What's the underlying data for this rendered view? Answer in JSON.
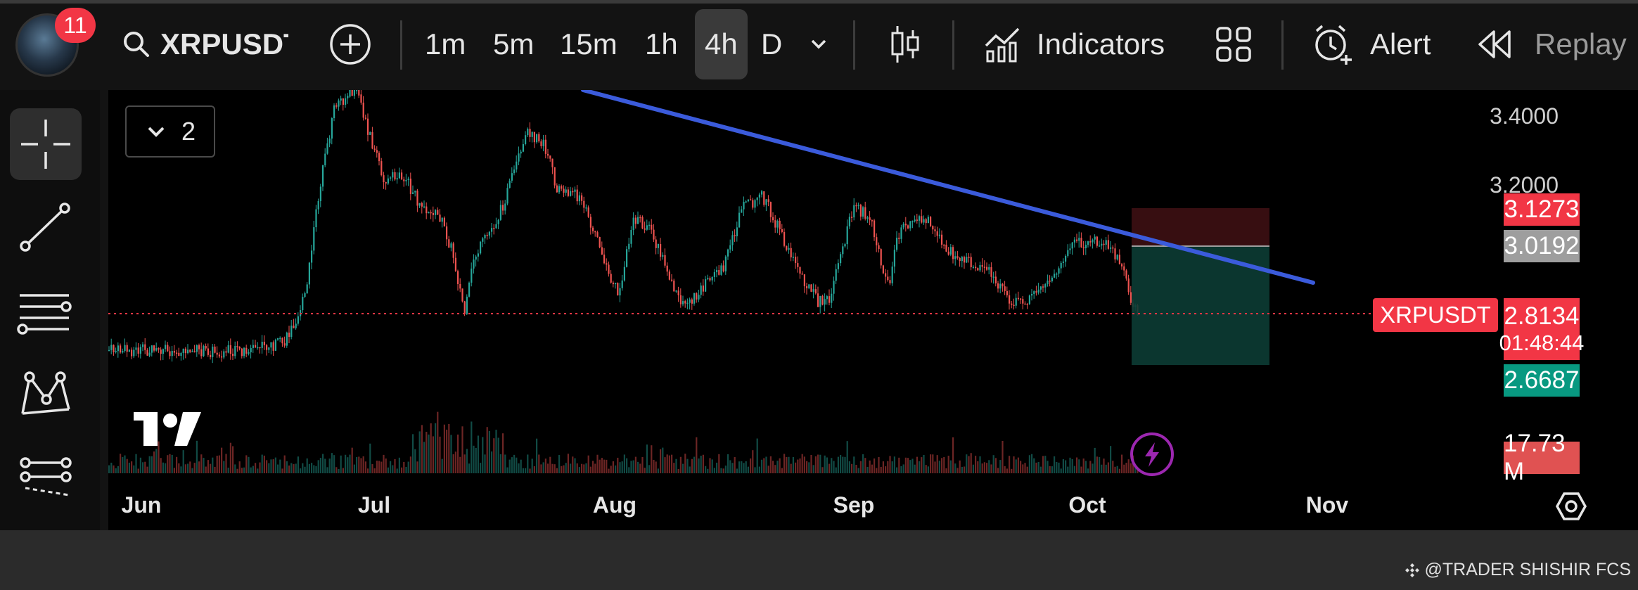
{
  "toolbar": {
    "notification_count": "11",
    "symbol": "XRPUSDT",
    "timeframes": [
      "1m",
      "5m",
      "15m",
      "1h",
      "4h",
      "D"
    ],
    "active_timeframe": "4h",
    "indicators_label": "Indicators",
    "alert_label": "Alert",
    "replay_label": "Replay"
  },
  "chart": {
    "layout_count": "2",
    "symbol_tag": "XRPUSDT",
    "x_labels": [
      "Jun",
      "Jul",
      "Aug",
      "Sep",
      "Oct",
      "Nov"
    ],
    "y_labels": [
      "3.4000",
      "3.2000"
    ],
    "price_tags": {
      "target_top": "3.1273",
      "entry": "3.0192",
      "current": "2.8134",
      "countdown": "01:48:44",
      "stop": "2.6687",
      "volume": "17.73 M"
    },
    "colors": {
      "up": "#26a69a",
      "down": "#ef5350",
      "trendline": "#3b5bdb",
      "current_price": "#f23645",
      "stop_zone": "#0c3c34",
      "target_zone": "#3a0f12"
    }
  },
  "watermark": "@TRADER SHISHIR FCS"
}
